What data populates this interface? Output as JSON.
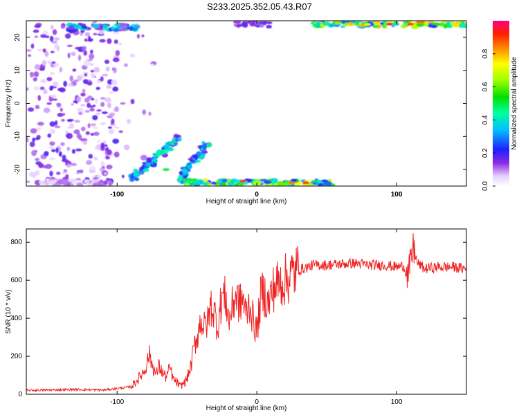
{
  "title": "S233.2025.352.05.43.R07",
  "chart_data": [
    {
      "type": "heatmap",
      "xlabel": "Height of straight line (km)",
      "ylabel": "Frequency (Hz)",
      "xlim": [
        -165,
        150
      ],
      "ylim": [
        -25,
        25
      ],
      "xticks": [
        -100,
        0,
        100
      ],
      "yticks": [
        20,
        10,
        0,
        -10,
        -20
      ],
      "colorbar": {
        "label": "Normalized spectral amplitude",
        "range": [
          0,
          1
        ],
        "ticks": [
          "0.0",
          "0.2",
          "0.4",
          "0.6",
          "0.8"
        ],
        "tick_values": [
          0,
          0.2,
          0.4,
          0.6,
          0.8
        ]
      },
      "features": [
        {
          "name": "noise-cluster-left",
          "x_range": [
            -165,
            -100
          ],
          "freq_range": [
            -25,
            25
          ],
          "amplitude": 0.15
        },
        {
          "name": "upper-left-band",
          "x_range": [
            -135,
            -85
          ],
          "freq": 23,
          "amplitude": 0.45
        },
        {
          "name": "lower-band-left",
          "x_range": [
            -155,
            -110
          ],
          "freq": -24,
          "amplitude": 0.12
        },
        {
          "name": "diagonal-streak-1",
          "from": [
            -90,
            -23
          ],
          "to": [
            -55,
            -10
          ],
          "amplitude": 0.45
        },
        {
          "name": "diagonal-streak-2",
          "from": [
            -55,
            -23
          ],
          "to": [
            -35,
            -12
          ],
          "amplitude": 0.45
        },
        {
          "name": "lower-band-center",
          "x_range": [
            -55,
            55
          ],
          "freq": -24,
          "amplitude": 0.75
        },
        {
          "name": "upper-band-right",
          "x_range": [
            40,
            150
          ],
          "freq": 24,
          "amplitude": 0.85
        },
        {
          "name": "upper-band-center",
          "x_range": [
            -15,
            10
          ],
          "freq": 24,
          "amplitude": 0.2
        }
      ]
    },
    {
      "type": "line",
      "xlabel": "Height of straight line (km)",
      "ylabel": "SNR (10 * v/v)",
      "xlim": [
        -165,
        150
      ],
      "ylim": [
        0,
        870
      ],
      "xticks": [
        -100,
        0,
        100
      ],
      "yticks": [
        0,
        200,
        400,
        600,
        800
      ],
      "color": "#ee2222",
      "series": [
        {
          "x": [
            -165,
            -150,
            -130,
            -110,
            -100,
            -90,
            -85,
            -80,
            -77,
            -75,
            -72,
            -70,
            -68,
            -65,
            -62,
            -60,
            -57,
            -55,
            -52,
            -50,
            -47,
            -45,
            -42,
            -40,
            -38,
            -35,
            -33,
            -30,
            -28,
            -25,
            -22,
            -20,
            -18,
            -15,
            -12,
            -10,
            -8,
            -5,
            -3,
            0,
            3,
            5,
            8,
            10,
            12,
            15,
            18,
            20,
            22,
            25,
            28,
            30,
            35,
            40,
            50,
            60,
            70,
            80,
            90,
            100,
            105,
            108,
            110,
            112,
            115,
            120,
            130,
            140,
            150
          ],
          "y": [
            20,
            22,
            25,
            22,
            30,
            40,
            80,
            130,
            210,
            160,
            100,
            150,
            120,
            90,
            140,
            80,
            60,
            40,
            60,
            80,
            150,
            250,
            320,
            400,
            350,
            380,
            470,
            420,
            350,
            520,
            500,
            380,
            450,
            520,
            470,
            510,
            420,
            480,
            400,
            330,
            520,
            540,
            470,
            520,
            560,
            580,
            590,
            600,
            610,
            630,
            650,
            655,
            665,
            680,
            680,
            685,
            690,
            680,
            680,
            670,
            675,
            620,
            680,
            770,
            690,
            660,
            670,
            670,
            660
          ]
        }
      ]
    }
  ]
}
